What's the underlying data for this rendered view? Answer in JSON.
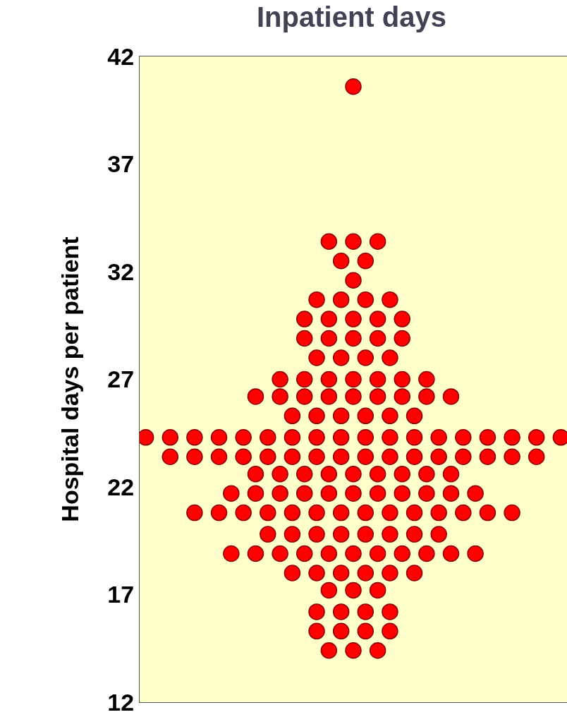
{
  "chart_data": {
    "type": "scatter",
    "title": "Inpatient days",
    "ylabel": "Hospital days per patient",
    "categories": [
      null,
      null,
      null,
      null,
      null,
      null,
      null,
      null,
      null,
      null,
      null,
      null,
      null,
      null,
      null,
      null,
      null,
      null,
      null,
      null,
      null,
      null,
      null,
      null,
      null,
      null,
      null,
      null,
      null,
      null,
      null,
      null,
      null,
      null,
      null
    ],
    "series": [
      {
        "color": "#ff0000",
        "values": [
          null,
          null,
          null,
          null,
          null,
          null,
          null,
          null,
          null,
          null,
          null,
          null,
          null,
          null,
          null,
          null,
          null,
          40.6,
          null,
          null,
          null,
          null,
          null,
          null,
          null,
          null,
          null,
          null,
          null,
          null,
          null,
          null,
          null,
          null,
          null
        ]
      },
      {
        "color": "#ff0000",
        "values": [
          null,
          null,
          null,
          null,
          null,
          null,
          null,
          null,
          null,
          null,
          null,
          null,
          null,
          null,
          null,
          33.4,
          null,
          33.4,
          null,
          33.4,
          null,
          null,
          null,
          null,
          null,
          null,
          null,
          null,
          null,
          null,
          null,
          null,
          null,
          null,
          null
        ]
      },
      {
        "color": "#ff0000",
        "values": [
          null,
          null,
          null,
          null,
          null,
          null,
          null,
          null,
          null,
          null,
          null,
          null,
          null,
          null,
          null,
          null,
          32.5,
          null,
          32.5,
          null,
          null,
          null,
          null,
          null,
          null,
          null,
          null,
          null,
          null,
          null,
          null,
          null,
          null,
          null,
          null
        ]
      },
      {
        "color": "#ff0000",
        "values": [
          null,
          null,
          null,
          null,
          null,
          null,
          null,
          null,
          null,
          null,
          null,
          null,
          null,
          null,
          null,
          null,
          null,
          31.6,
          null,
          null,
          null,
          null,
          null,
          null,
          null,
          null,
          null,
          null,
          null,
          null,
          null,
          null,
          null,
          null,
          null
        ]
      },
      {
        "color": "#ff0000",
        "values": [
          null,
          null,
          null,
          null,
          null,
          null,
          null,
          null,
          null,
          null,
          null,
          null,
          null,
          null,
          30.7,
          null,
          30.7,
          null,
          30.7,
          null,
          30.7,
          null,
          null,
          null,
          null,
          null,
          null,
          null,
          null,
          null,
          null,
          null,
          null,
          null,
          null
        ]
      },
      {
        "color": "#ff0000",
        "values": [
          null,
          null,
          null,
          null,
          null,
          null,
          null,
          null,
          null,
          null,
          null,
          null,
          null,
          29.8,
          null,
          29.8,
          null,
          29.8,
          null,
          29.8,
          null,
          29.8,
          null,
          null,
          null,
          null,
          null,
          null,
          null,
          null,
          null,
          null,
          null,
          null,
          null
        ]
      },
      {
        "color": "#ff0000",
        "values": [
          null,
          null,
          null,
          null,
          null,
          null,
          null,
          null,
          null,
          null,
          null,
          null,
          null,
          28.9,
          null,
          28.9,
          null,
          28.9,
          null,
          28.9,
          null,
          28.9,
          null,
          null,
          null,
          null,
          null,
          null,
          null,
          null,
          null,
          null,
          null,
          null,
          null
        ]
      },
      {
        "color": "#ff0000",
        "values": [
          null,
          null,
          null,
          null,
          null,
          null,
          null,
          null,
          null,
          null,
          null,
          null,
          null,
          null,
          28.0,
          null,
          28.0,
          null,
          28.0,
          null,
          28.0,
          null,
          null,
          null,
          null,
          null,
          null,
          null,
          null,
          null,
          null,
          null,
          null,
          null,
          null
        ]
      },
      {
        "color": "#ff0000",
        "values": [
          null,
          null,
          null,
          null,
          null,
          null,
          null,
          null,
          null,
          null,
          null,
          27.0,
          null,
          27.0,
          null,
          27.0,
          null,
          27.0,
          null,
          27.0,
          null,
          27.0,
          null,
          27.0,
          null,
          null,
          null,
          null,
          null,
          null,
          null,
          null,
          null,
          null,
          null
        ]
      },
      {
        "color": "#ff0000",
        "values": [
          null,
          null,
          null,
          null,
          null,
          null,
          null,
          null,
          null,
          26.2,
          null,
          26.2,
          null,
          26.2,
          null,
          26.2,
          null,
          26.2,
          null,
          26.2,
          null,
          26.2,
          null,
          26.2,
          null,
          26.2,
          null,
          null,
          null,
          null,
          null,
          null,
          null,
          null,
          null
        ]
      },
      {
        "color": "#ff0000",
        "values": [
          null,
          null,
          null,
          null,
          null,
          null,
          null,
          null,
          null,
          null,
          null,
          null,
          25.3,
          null,
          25.3,
          null,
          25.3,
          null,
          25.3,
          null,
          25.3,
          null,
          25.3,
          null,
          null,
          null,
          null,
          null,
          null,
          null,
          null,
          null,
          null,
          null,
          null
        ]
      },
      {
        "color": "#ff0000",
        "values": [
          24.3,
          null,
          24.3,
          null,
          24.3,
          null,
          24.3,
          null,
          24.3,
          null,
          24.3,
          null,
          24.3,
          null,
          24.3,
          null,
          24.3,
          null,
          24.3,
          null,
          24.3,
          null,
          24.3,
          null,
          24.3,
          null,
          24.3,
          null,
          24.3,
          null,
          24.3,
          null,
          24.3,
          null,
          24.3
        ]
      },
      {
        "color": "#ff0000",
        "values": [
          null,
          null,
          23.4,
          null,
          23.4,
          null,
          23.4,
          null,
          23.4,
          null,
          23.4,
          null,
          23.4,
          null,
          23.4,
          null,
          23.4,
          null,
          23.4,
          null,
          23.4,
          null,
          23.4,
          null,
          23.4,
          null,
          23.4,
          null,
          23.4,
          null,
          23.4,
          null,
          23.4,
          null,
          null
        ]
      },
      {
        "color": "#ff0000",
        "values": [
          null,
          null,
          null,
          null,
          null,
          null,
          null,
          null,
          null,
          22.6,
          null,
          22.6,
          null,
          22.6,
          null,
          22.6,
          null,
          22.6,
          null,
          22.6,
          null,
          22.6,
          null,
          22.6,
          null,
          22.6,
          null,
          null,
          null,
          null,
          null,
          null,
          null,
          null,
          null
        ]
      },
      {
        "color": "#ff0000",
        "values": [
          null,
          null,
          null,
          null,
          null,
          null,
          null,
          21.7,
          null,
          21.7,
          null,
          21.7,
          null,
          21.7,
          null,
          21.7,
          null,
          21.7,
          null,
          21.7,
          null,
          21.7,
          null,
          21.7,
          null,
          21.7,
          null,
          21.7,
          null,
          null,
          null,
          null,
          null,
          null,
          null
        ]
      },
      {
        "color": "#ff0000",
        "values": [
          null,
          null,
          null,
          null,
          20.8,
          null,
          20.8,
          null,
          20.8,
          null,
          20.8,
          null,
          20.8,
          null,
          20.8,
          null,
          20.8,
          null,
          20.8,
          null,
          20.8,
          null,
          20.8,
          null,
          20.8,
          null,
          20.8,
          null,
          20.8,
          null,
          20.8,
          null,
          null,
          null,
          null
        ]
      },
      {
        "color": "#ff0000",
        "values": [
          null,
          null,
          null,
          null,
          null,
          null,
          null,
          null,
          null,
          null,
          19.8,
          null,
          19.8,
          null,
          19.8,
          null,
          19.8,
          null,
          19.8,
          null,
          19.8,
          null,
          19.8,
          null,
          19.8,
          null,
          null,
          null,
          null,
          null,
          null,
          null,
          null,
          null,
          null
        ]
      },
      {
        "color": "#ff0000",
        "values": [
          null,
          null,
          null,
          null,
          null,
          null,
          null,
          18.9,
          null,
          18.9,
          null,
          18.9,
          null,
          18.9,
          null,
          18.9,
          null,
          18.9,
          null,
          18.9,
          null,
          18.9,
          null,
          18.9,
          null,
          18.9,
          null,
          18.9,
          null,
          null,
          null,
          null,
          null,
          null,
          null
        ]
      },
      {
        "color": "#ff0000",
        "values": [
          null,
          null,
          null,
          null,
          null,
          null,
          null,
          null,
          null,
          null,
          null,
          null,
          18.0,
          null,
          18.0,
          null,
          18.0,
          null,
          18.0,
          null,
          18.0,
          null,
          18.0,
          null,
          null,
          null,
          null,
          null,
          null,
          null,
          null,
          null,
          null,
          null,
          null
        ]
      },
      {
        "color": "#ff0000",
        "values": [
          null,
          null,
          null,
          null,
          null,
          null,
          null,
          null,
          null,
          null,
          null,
          null,
          null,
          null,
          null,
          17.2,
          null,
          17.2,
          null,
          17.2,
          null,
          null,
          null,
          null,
          null,
          null,
          null,
          null,
          null,
          null,
          null,
          null,
          null,
          null,
          null
        ]
      },
      {
        "color": "#ff0000",
        "values": [
          null,
          null,
          null,
          null,
          null,
          null,
          null,
          null,
          null,
          null,
          null,
          null,
          null,
          null,
          16.2,
          null,
          16.2,
          null,
          16.2,
          null,
          16.2,
          null,
          null,
          null,
          null,
          null,
          null,
          null,
          null,
          null,
          null,
          null,
          null,
          null,
          null
        ]
      },
      {
        "color": "#ff0000",
        "values": [
          null,
          null,
          null,
          null,
          null,
          null,
          null,
          null,
          null,
          null,
          null,
          null,
          null,
          null,
          15.3,
          null,
          15.3,
          null,
          15.3,
          null,
          15.3,
          null,
          null,
          null,
          null,
          null,
          null,
          null,
          null,
          null,
          null,
          null,
          null,
          null,
          null
        ]
      },
      {
        "color": "#ff0000",
        "values": [
          null,
          null,
          null,
          null,
          null,
          null,
          null,
          null,
          null,
          null,
          null,
          null,
          null,
          null,
          null,
          14.4,
          null,
          14.4,
          null,
          14.4,
          null,
          null,
          null,
          null,
          null,
          null,
          null,
          null,
          null,
          null,
          null,
          null,
          null,
          null,
          null
        ]
      }
    ],
    "marker": "circle",
    "ylim": [
      12,
      42
    ],
    "yticks": [
      12,
      17,
      22,
      27,
      32,
      37,
      42
    ],
    "grid": false,
    "tick_labels": "y"
  }
}
